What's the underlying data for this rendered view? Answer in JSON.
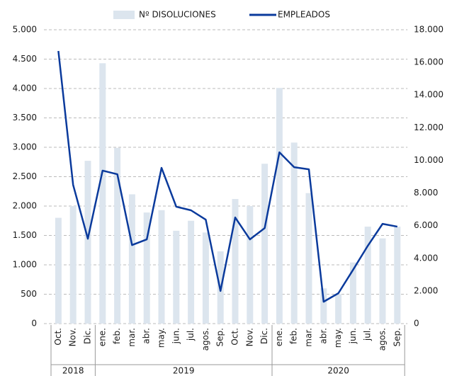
{
  "chart_data": {
    "type": "bar-line",
    "categories": [
      "Oct.",
      "Nov.",
      "Dic.",
      "ene.",
      "feb.",
      "mar.",
      "abr.",
      "may.",
      "jun.",
      "jul.",
      "agos.",
      "Sep.",
      "Oct.",
      "Nov.",
      "Dic.",
      "ene.",
      "feb.",
      "mar.",
      "abr.",
      "may.",
      "jun.",
      "jul.",
      "agos.",
      "Sep."
    ],
    "groups": [
      {
        "label": "2018",
        "span": 3
      },
      {
        "label": "2019",
        "span": 12
      },
      {
        "label": "2020",
        "span": 9
      }
    ],
    "series": [
      {
        "name": "Nº DISOLUCIONES",
        "type": "bar",
        "color": "#dce5ee",
        "axis": "y",
        "values": [
          1800,
          2000,
          2770,
          4430,
          2990,
          2200,
          1890,
          1930,
          1580,
          1750,
          1550,
          1230,
          2120,
          2000,
          2720,
          4010,
          3080,
          2220,
          600,
          500,
          1040,
          1650,
          1450,
          1650
        ]
      },
      {
        "name": "EMPLEADOS",
        "type": "line",
        "color": "#0a3a9c",
        "axis": "y2",
        "values": [
          16700,
          8500,
          5200,
          9370,
          9150,
          4810,
          5160,
          9540,
          7160,
          6940,
          6370,
          2000,
          6500,
          5160,
          5850,
          10490,
          9580,
          9450,
          1340,
          1860,
          3300,
          4770,
          6110,
          5940
        ]
      }
    ],
    "ylim": [
      0,
      5000
    ],
    "yticks": [
      0,
      {
        "value": 500,
        "label": "500"
      },
      {
        "value": 1000,
        "label": "1.000"
      },
      {
        "value": 1500,
        "label": "1.500"
      },
      {
        "value": 2000,
        "label": "2.000"
      },
      {
        "value": 2500,
        "label": "2.500"
      },
      {
        "value": 3000,
        "label": "3.000"
      },
      {
        "value": 3500,
        "label": "3.500"
      },
      {
        "value": 4000,
        "label": "4.000"
      },
      {
        "value": 4500,
        "label": "4.500"
      },
      {
        "value": 5000,
        "label": "5.000"
      }
    ],
    "y2lim": [
      0,
      18000
    ],
    "y2ticks": [
      0,
      {
        "value": 2000,
        "label": "2.000"
      },
      {
        "value": 4000,
        "label": "4.000"
      },
      {
        "value": 6000,
        "label": "6.000"
      },
      {
        "value": 8000,
        "label": "8.000"
      },
      {
        "value": 10000,
        "label": "10.000"
      },
      {
        "value": 12000,
        "label": "12.000"
      },
      {
        "value": 14000,
        "label": "14.000"
      },
      {
        "value": 16000,
        "label": "16.000"
      },
      {
        "value": 18000,
        "label": "18.000"
      }
    ],
    "grid": true,
    "legend": "top"
  }
}
